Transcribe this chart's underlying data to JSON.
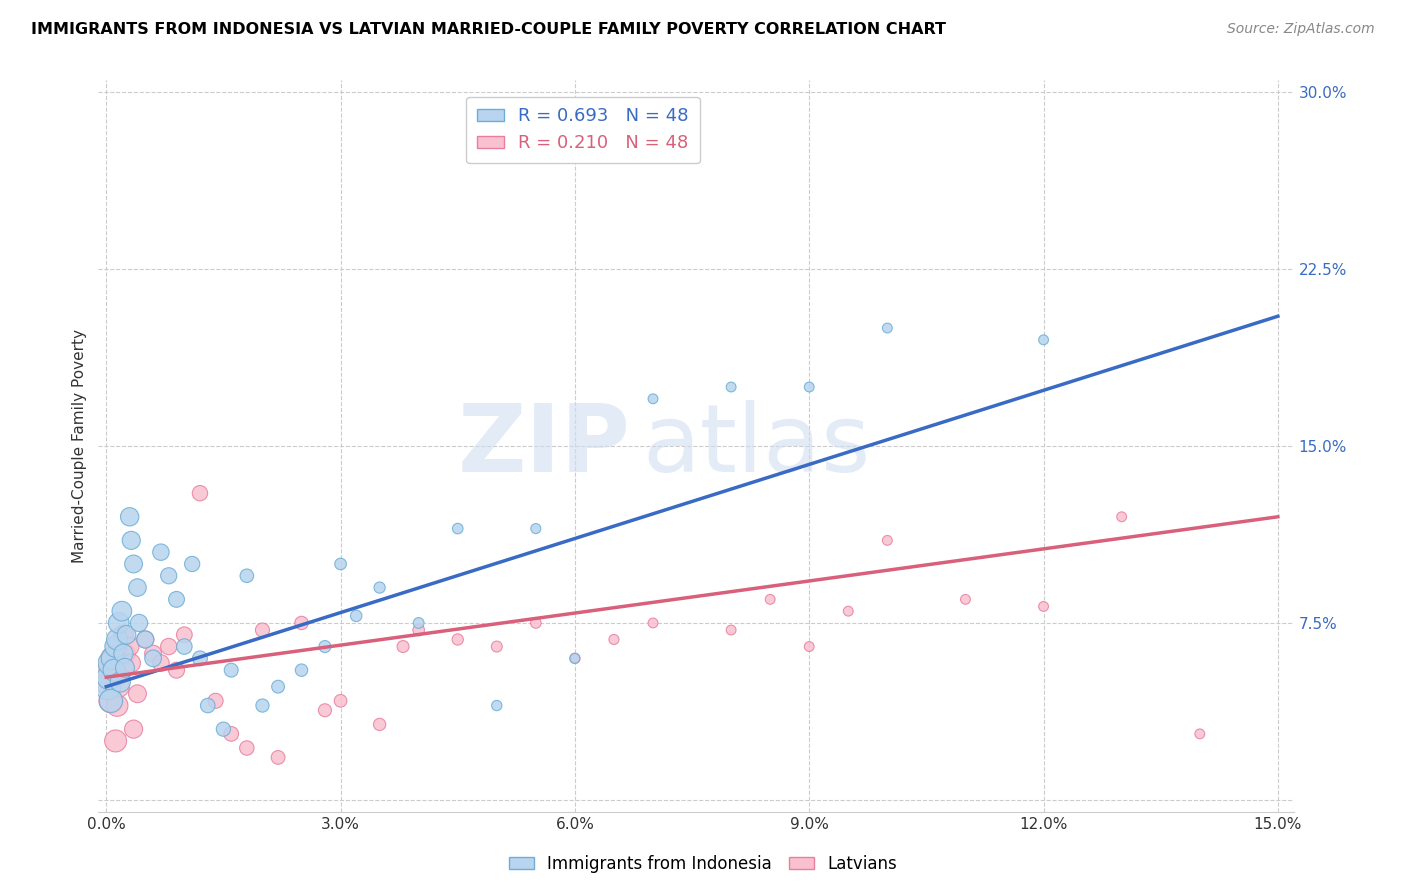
{
  "title": "IMMIGRANTS FROM INDONESIA VS LATVIAN MARRIED-COUPLE FAMILY POVERTY CORRELATION CHART",
  "source": "Source: ZipAtlas.com",
  "ylabel": "Married-Couple Family Poverty",
  "xlim": [
    -0.001,
    0.152
  ],
  "ylim": [
    -0.005,
    0.305
  ],
  "xticks": [
    0.0,
    0.03,
    0.06,
    0.09,
    0.12,
    0.15
  ],
  "xtick_labels": [
    "0.0%",
    "3.0%",
    "6.0%",
    "9.0%",
    "12.0%",
    "15.0%"
  ],
  "yticks": [
    0.0,
    0.075,
    0.15,
    0.225,
    0.3
  ],
  "ytick_labels": [
    "",
    "7.5%",
    "15.0%",
    "22.5%",
    "30.0%"
  ],
  "series1_color": "#b8d4ee",
  "series1_edge": "#6baed6",
  "series2_color": "#f9c0cf",
  "series2_edge": "#e87fa0",
  "line1_color": "#3a6bc4",
  "line2_color": "#d9607a",
  "R1": 0.693,
  "N1": 48,
  "R2": 0.21,
  "N2": 48,
  "background_color": "#ffffff",
  "grid_color": "#cccccc",
  "watermark_zip": "ZIP",
  "watermark_atlas": "atlas",
  "series1_label": "Immigrants from Indonesia",
  "series2_label": "Latvians",
  "line1_x0": 0.0,
  "line1_y0": 0.048,
  "line1_x1": 0.15,
  "line1_y1": 0.205,
  "line2_x0": 0.0,
  "line2_y0": 0.052,
  "line2_x1": 0.15,
  "line2_y1": 0.12,
  "indo_x": [
    0.0002,
    0.0004,
    0.0005,
    0.0006,
    0.0008,
    0.001,
    0.0012,
    0.0014,
    0.0016,
    0.0018,
    0.002,
    0.0022,
    0.0024,
    0.0026,
    0.003,
    0.0032,
    0.0035,
    0.004,
    0.0042,
    0.005,
    0.006,
    0.007,
    0.008,
    0.009,
    0.01,
    0.011,
    0.012,
    0.013,
    0.015,
    0.016,
    0.018,
    0.02,
    0.022,
    0.025,
    0.028,
    0.03,
    0.032,
    0.035,
    0.04,
    0.045,
    0.05,
    0.055,
    0.06,
    0.07,
    0.08,
    0.09,
    0.1,
    0.12
  ],
  "indo_y": [
    0.048,
    0.052,
    0.058,
    0.042,
    0.06,
    0.055,
    0.065,
    0.068,
    0.075,
    0.05,
    0.08,
    0.062,
    0.056,
    0.07,
    0.12,
    0.11,
    0.1,
    0.09,
    0.075,
    0.068,
    0.06,
    0.105,
    0.095,
    0.085,
    0.065,
    0.1,
    0.06,
    0.04,
    0.03,
    0.055,
    0.095,
    0.04,
    0.048,
    0.055,
    0.065,
    0.1,
    0.078,
    0.09,
    0.075,
    0.115,
    0.04,
    0.115,
    0.06,
    0.17,
    0.175,
    0.175,
    0.2,
    0.195
  ],
  "latv_x": [
    0.0002,
    0.0004,
    0.0006,
    0.0008,
    0.001,
    0.0012,
    0.0014,
    0.0016,
    0.002,
    0.0022,
    0.0025,
    0.003,
    0.0032,
    0.0035,
    0.004,
    0.005,
    0.006,
    0.007,
    0.008,
    0.009,
    0.01,
    0.012,
    0.014,
    0.016,
    0.018,
    0.02,
    0.022,
    0.025,
    0.028,
    0.03,
    0.035,
    0.038,
    0.04,
    0.045,
    0.05,
    0.055,
    0.06,
    0.065,
    0.07,
    0.08,
    0.085,
    0.09,
    0.095,
    0.1,
    0.11,
    0.12,
    0.13,
    0.14
  ],
  "latv_y": [
    0.05,
    0.055,
    0.042,
    0.06,
    0.052,
    0.025,
    0.04,
    0.048,
    0.055,
    0.07,
    0.062,
    0.065,
    0.058,
    0.03,
    0.045,
    0.068,
    0.062,
    0.058,
    0.065,
    0.055,
    0.07,
    0.13,
    0.042,
    0.028,
    0.022,
    0.072,
    0.018,
    0.075,
    0.038,
    0.042,
    0.032,
    0.065,
    0.072,
    0.068,
    0.065,
    0.075,
    0.06,
    0.068,
    0.075,
    0.072,
    0.085,
    0.065,
    0.08,
    0.11,
    0.085,
    0.082,
    0.12,
    0.028
  ],
  "indo_sizes": [
    350,
    320,
    300,
    280,
    260,
    250,
    240,
    230,
    220,
    210,
    200,
    190,
    185,
    180,
    175,
    170,
    165,
    160,
    155,
    150,
    145,
    140,
    135,
    130,
    125,
    120,
    115,
    110,
    105,
    100,
    95,
    90,
    85,
    80,
    75,
    70,
    68,
    65,
    60,
    58,
    55,
    52,
    50,
    50,
    50,
    50,
    50,
    50
  ],
  "latv_sizes": [
    350,
    320,
    300,
    280,
    260,
    250,
    240,
    230,
    210,
    200,
    190,
    180,
    175,
    170,
    165,
    155,
    148,
    142,
    138,
    133,
    128,
    122,
    118,
    112,
    108,
    102,
    98,
    93,
    88,
    83,
    78,
    74,
    70,
    66,
    62,
    58,
    55,
    52,
    50,
    50,
    50,
    50,
    50,
    50,
    50,
    50,
    50,
    50
  ]
}
